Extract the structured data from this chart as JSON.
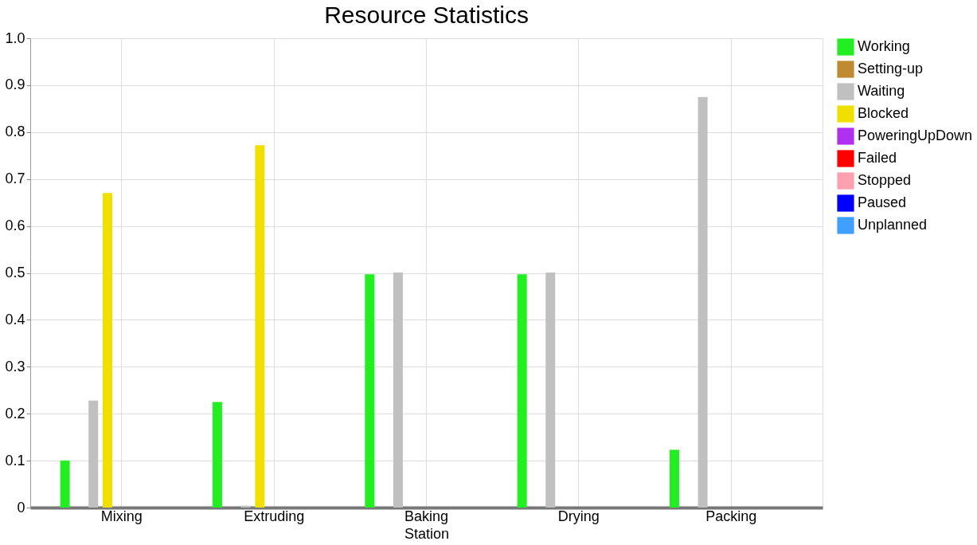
{
  "chart_data": {
    "type": "bar",
    "title": "Resource Statistics",
    "xlabel": "Station",
    "categories": [
      "Mixing",
      "Extruding",
      "Baking",
      "Drying",
      "Packing"
    ],
    "series": [
      {
        "name": "Working",
        "color": "#22ee22",
        "values": [
          0.1,
          0.225,
          0.497,
          0.497,
          0.123
        ]
      },
      {
        "name": "Setting-up",
        "color": "#c08a30",
        "values": [
          null,
          null,
          null,
          null,
          null
        ]
      },
      {
        "name": "Waiting",
        "color": "#c0c0c0",
        "values": [
          0.228,
          0.004,
          0.501,
          0.501,
          0.875
        ]
      },
      {
        "name": "Blocked",
        "color": "#f0e000",
        "values": [
          0.67,
          0.772,
          null,
          null,
          null
        ]
      },
      {
        "name": "PoweringUpDown",
        "color": "#b030f0",
        "values": [
          null,
          null,
          null,
          null,
          null
        ]
      },
      {
        "name": "Failed",
        "color": "#ff0000",
        "values": [
          null,
          null,
          null,
          null,
          null
        ]
      },
      {
        "name": "Stopped",
        "color": "#ffa0b0",
        "values": [
          null,
          null,
          null,
          null,
          null
        ]
      },
      {
        "name": "Paused",
        "color": "#0000ff",
        "values": [
          null,
          null,
          null,
          null,
          null
        ]
      },
      {
        "name": "Unplanned",
        "color": "#40a0ff",
        "values": [
          null,
          null,
          null,
          null,
          null
        ]
      }
    ],
    "ylim": [
      0,
      1.0
    ],
    "yticks": [
      0,
      0.1,
      0.2,
      0.3,
      0.4,
      0.5,
      0.6,
      0.7,
      0.8,
      0.9,
      {
        "value": 1.0,
        "label": "1.0"
      }
    ],
    "grid": true,
    "legend": "top right"
  }
}
